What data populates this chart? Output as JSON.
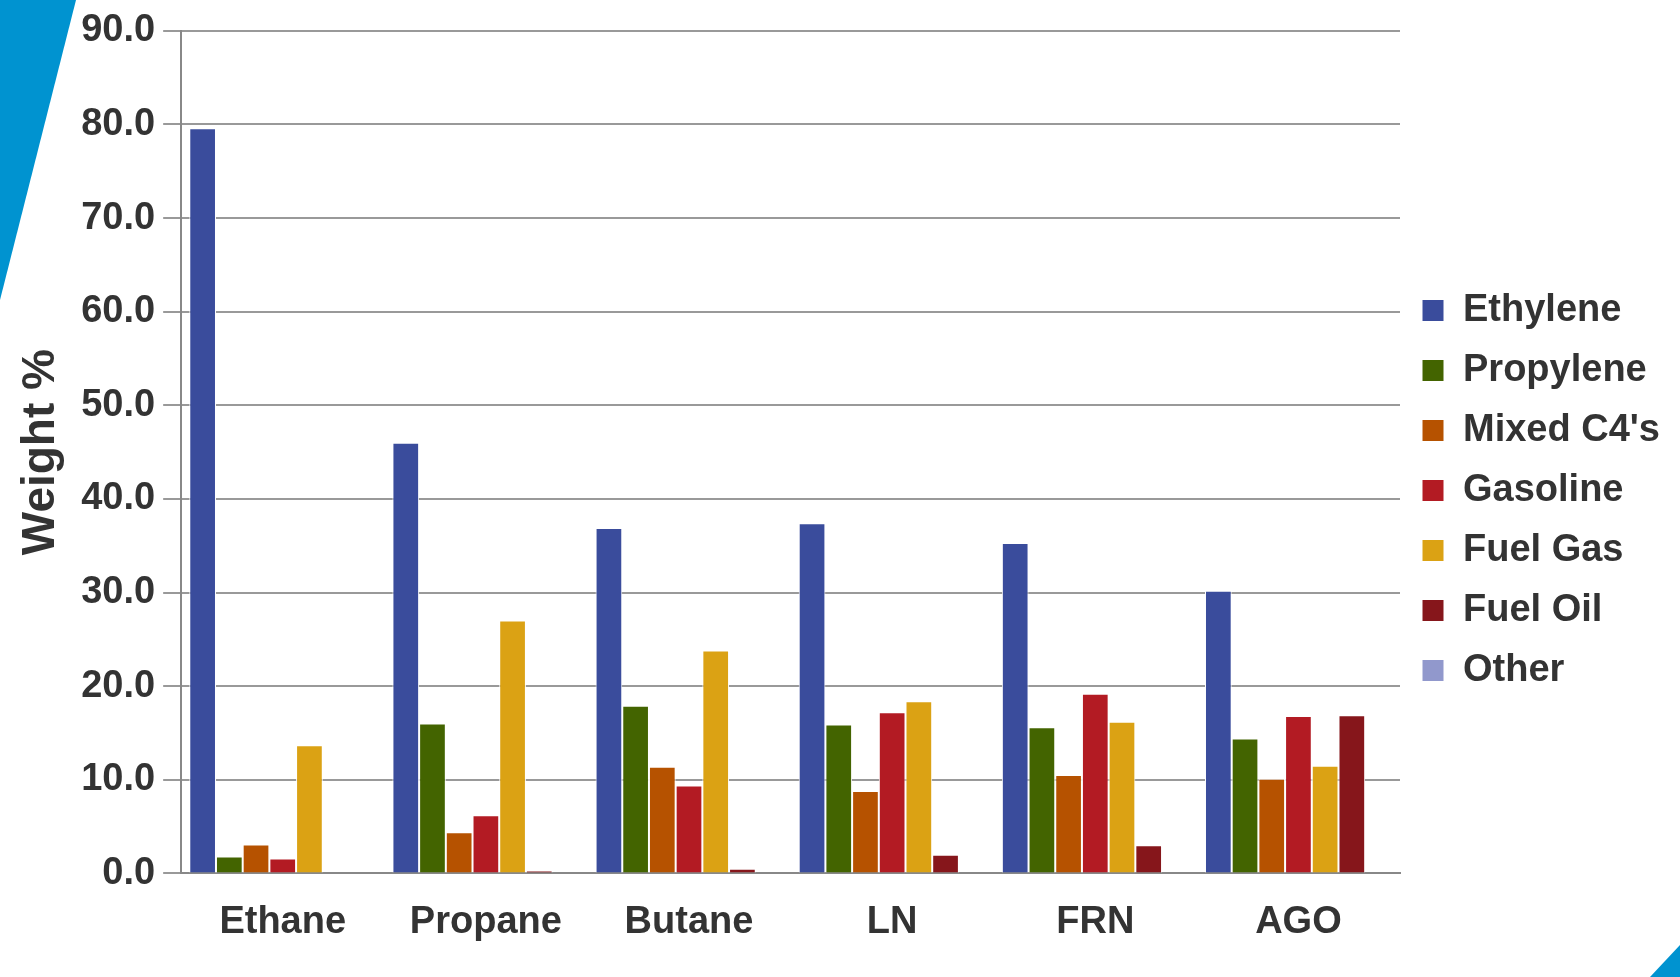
{
  "chart_data": {
    "type": "bar",
    "ylabel": "Weight %",
    "categories": [
      "Ethane",
      "Propane",
      "Butane",
      "LN",
      "FRN",
      "AGO"
    ],
    "series": [
      {
        "name": "Ethylene",
        "color": "#3a4c9c",
        "values": [
          79.6,
          46.0,
          36.9,
          37.4,
          35.3,
          30.2
        ]
      },
      {
        "name": "Propylene",
        "color": "#436400",
        "values": [
          1.8,
          16.0,
          17.9,
          15.9,
          15.6,
          14.4
        ]
      },
      {
        "name": "Mixed C4's",
        "color": "#b65200",
        "values": [
          3.1,
          4.4,
          11.4,
          8.8,
          10.5,
          10.1
        ]
      },
      {
        "name": "Gasoline",
        "color": "#b31b23",
        "values": [
          1.6,
          6.2,
          9.4,
          17.2,
          19.2,
          16.8
        ]
      },
      {
        "name": "Fuel Gas",
        "color": "#dba214",
        "values": [
          13.7,
          27.0,
          23.8,
          18.4,
          16.2,
          11.5
        ]
      },
      {
        "name": "Fuel Oil",
        "color": "#86161b",
        "values": [
          0.1,
          0.3,
          0.5,
          2.0,
          3.0,
          16.9
        ]
      },
      {
        "name": "Other",
        "color": "#9198cc",
        "values": [
          0,
          0,
          0,
          0,
          0,
          0
        ]
      }
    ],
    "ylim": [
      0,
      90
    ],
    "yticks": [
      {
        "value": 0,
        "label": "0.0"
      },
      {
        "value": 10,
        "label": "10.0"
      },
      {
        "value": 20,
        "label": "20.0"
      },
      {
        "value": 30,
        "label": "30.0"
      },
      {
        "value": 40,
        "label": "40.0"
      },
      {
        "value": 50,
        "label": "50.0"
      },
      {
        "value": 60,
        "label": "60.0"
      },
      {
        "value": 70,
        "label": "70.0"
      },
      {
        "value": 80,
        "label": "80.0"
      },
      {
        "value": 90,
        "label": "90.0"
      }
    ],
    "grid": "y",
    "legend": "right"
  }
}
